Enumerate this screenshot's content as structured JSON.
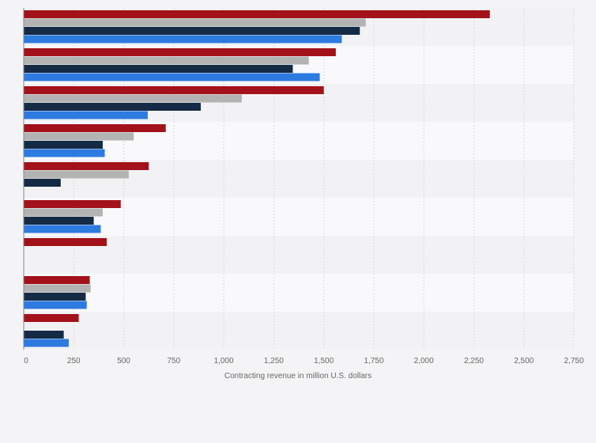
{
  "chart_data": {
    "type": "bar",
    "orientation": "horizontal",
    "categories": [
      "",
      "",
      "",
      "",
      "",
      "",
      "",
      "",
      ""
    ],
    "series": [
      {
        "values": [
          2330,
          1560,
          1500,
          710,
          625,
          485,
          415,
          330,
          275
        ]
      },
      {
        "values": [
          1710,
          1425,
          1090,
          550,
          525,
          395,
          null,
          335,
          null
        ]
      },
      {
        "values": [
          1680,
          1345,
          885,
          395,
          185,
          350,
          null,
          310,
          200
        ]
      },
      {
        "values": [
          1590,
          1480,
          620,
          405,
          null,
          385,
          null,
          315,
          225
        ]
      }
    ],
    "xlabel": "Contracting revenue in million U.S. dollars",
    "ylabel": "",
    "xlim": [
      0,
      2750
    ],
    "xticks": [
      "0",
      "250",
      "500",
      "750",
      "1,000",
      "1,250",
      "1,500",
      "1,750",
      "2,000",
      "2,250",
      "2,500",
      "2,750"
    ],
    "grid": true,
    "legend": "none",
    "colors": {
      "series": [
        "#a3111a",
        "#b3b3b3",
        "#152b45",
        "#2d7ae0"
      ],
      "band_light": "#f9f9fb",
      "band_dark": "#f2f2f4",
      "gridline": "#dcdcdc",
      "axis_text": "#666666"
    }
  }
}
